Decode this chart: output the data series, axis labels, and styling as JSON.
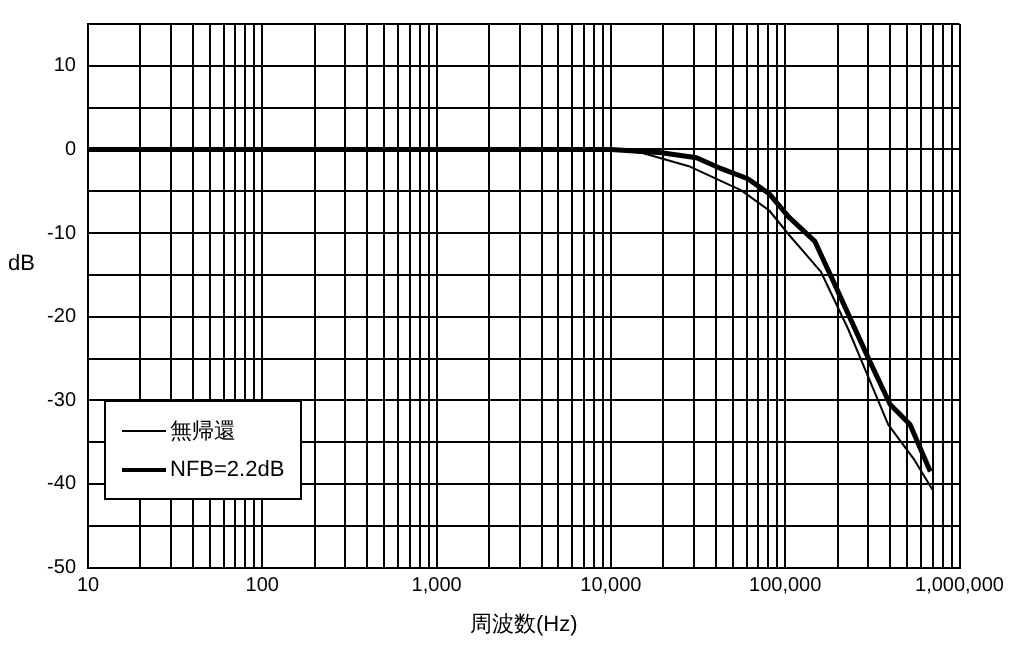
{
  "chart_data": {
    "type": "line",
    "xlabel": "周波数(Hz)",
    "ylabel": "dB",
    "log": "x",
    "grid": true,
    "legend": "bottom left",
    "marker": "none",
    "line_style": "solid",
    "xlim": [
      10,
      1000000
    ],
    "ylim": [
      -50,
      15
    ],
    "xticks": [
      {
        "value": 10,
        "label": "10"
      },
      {
        "value": 20,
        "label": null
      },
      {
        "value": 30,
        "label": null
      },
      {
        "value": 40,
        "label": null
      },
      {
        "value": 50,
        "label": null
      },
      {
        "value": 60,
        "label": null
      },
      {
        "value": 70,
        "label": null
      },
      {
        "value": 80,
        "label": null
      },
      {
        "value": 90,
        "label": null
      },
      {
        "value": 100,
        "label": "100"
      },
      {
        "value": 200,
        "label": null
      },
      {
        "value": 300,
        "label": null
      },
      {
        "value": 400,
        "label": null
      },
      {
        "value": 500,
        "label": null
      },
      {
        "value": 600,
        "label": null
      },
      {
        "value": 700,
        "label": null
      },
      {
        "value": 800,
        "label": null
      },
      {
        "value": 900,
        "label": null
      },
      {
        "value": 1000,
        "label": "1,000"
      },
      {
        "value": 2000,
        "label": null
      },
      {
        "value": 3000,
        "label": null
      },
      {
        "value": 4000,
        "label": null
      },
      {
        "value": 5000,
        "label": null
      },
      {
        "value": 6000,
        "label": null
      },
      {
        "value": 7000,
        "label": null
      },
      {
        "value": 8000,
        "label": null
      },
      {
        "value": 9000,
        "label": null
      },
      {
        "value": 10000,
        "label": "10,000"
      },
      {
        "value": 20000,
        "label": null
      },
      {
        "value": 30000,
        "label": null
      },
      {
        "value": 40000,
        "label": null
      },
      {
        "value": 50000,
        "label": null
      },
      {
        "value": 60000,
        "label": null
      },
      {
        "value": 70000,
        "label": null
      },
      {
        "value": 80000,
        "label": null
      },
      {
        "value": 90000,
        "label": null
      },
      {
        "value": 100000,
        "label": "100,000"
      },
      {
        "value": 200000,
        "label": null
      },
      {
        "value": 300000,
        "label": null
      },
      {
        "value": 400000,
        "label": null
      },
      {
        "value": 500000,
        "label": null
      },
      {
        "value": 600000,
        "label": null
      },
      {
        "value": 700000,
        "label": null
      },
      {
        "value": 800000,
        "label": null
      },
      {
        "value": 900000,
        "label": null
      },
      {
        "value": 1000000,
        "label": "1,000,000"
      }
    ],
    "yticks": [
      -50,
      {
        "value": -45,
        "label": null
      },
      -40,
      {
        "value": -35,
        "label": null
      },
      -30,
      {
        "value": -25,
        "label": null
      },
      -20,
      {
        "value": -15,
        "label": null
      },
      -10,
      {
        "value": -5,
        "label": null
      },
      0,
      {
        "value": 5,
        "label": null
      },
      10,
      {
        "value": 15,
        "label": null
      }
    ],
    "series": [
      {
        "name": "無帰還",
        "color": "#000000",
        "x": [
          10,
          10000,
          15000,
          28000,
          56000,
          81000,
          105000,
          160000,
          230000,
          390000,
          550000,
          700000
        ],
        "values": [
          0,
          0,
          -0.4,
          -2,
          -4.9,
          -7.3,
          -10.2,
          -14.6,
          -21.5,
          -32.9,
          -37.1,
          -40.7
        ]
      },
      {
        "name": "NFB=2.2dB",
        "color": "#000000",
        "x": [
          10,
          10000,
          19500,
          31000,
          43000,
          61000,
          81000,
          105000,
          148000,
          190000,
          302000,
          400000,
          520000,
          680000
        ],
        "values": [
          0,
          0,
          -0.4,
          -1,
          -2.3,
          -3.5,
          -5.3,
          -8.1,
          -11,
          -15.9,
          -25.1,
          -30.5,
          -32.9,
          -38.5
        ]
      }
    ]
  }
}
